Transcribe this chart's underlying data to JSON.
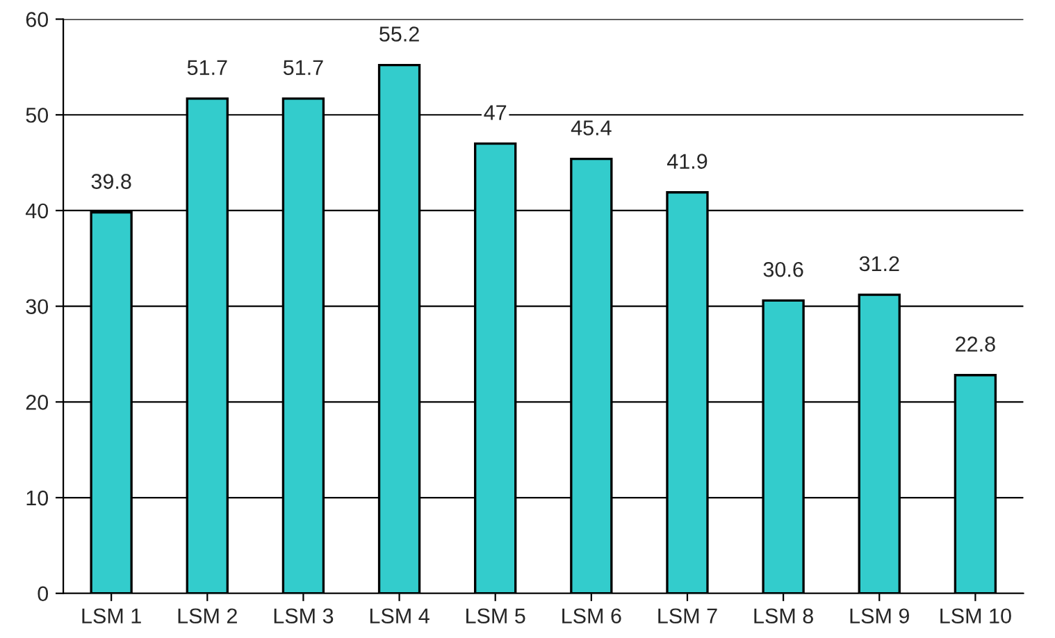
{
  "chart_data": {
    "type": "bar",
    "categories": [
      "LSM 1",
      "LSM 2",
      "LSM 3",
      "LSM 4",
      "LSM 5",
      "LSM 6",
      "LSM 7",
      "LSM 8",
      "LSM 9",
      "LSM 10"
    ],
    "values": [
      39.8,
      51.7,
      51.7,
      55.2,
      47,
      45.4,
      41.9,
      30.6,
      31.2,
      22.8
    ],
    "color": "#33cccc",
    "data_labels": true,
    "ylim": [
      0,
      60
    ],
    "yticks": [
      0,
      10,
      20,
      30,
      40,
      50,
      60
    ],
    "grid": "y"
  }
}
